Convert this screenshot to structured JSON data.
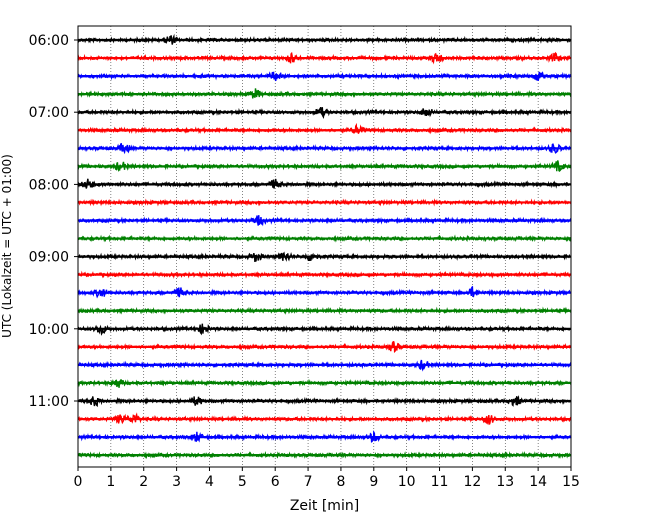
{
  "chart_data": {
    "type": "line",
    "title": "",
    "xlabel": "Zeit  [min]",
    "ylabel": "UTC (Lokalzeit = UTC + 01:00)",
    "xlim": [
      0,
      15
    ],
    "x_ticks": [
      "0",
      "1",
      "2",
      "3",
      "4",
      "5",
      "6",
      "7",
      "8",
      "9",
      "10",
      "11",
      "12",
      "13",
      "14",
      "15"
    ],
    "y_tick_labels": [
      "06:00",
      "07:00",
      "08:00",
      "09:00",
      "10:00",
      "11:00"
    ],
    "grid": "vertical dotted lines at each minute",
    "trace_interval_minutes": 15,
    "trace_colors_cycle": [
      "#000000",
      "#ff0000",
      "#0000ff",
      "#008000"
    ],
    "traces": [
      {
        "start": "06:00",
        "color": "#000000",
        "events_min": [
          2.8
        ]
      },
      {
        "start": "06:15",
        "color": "#ff0000",
        "events_min": [
          6.5,
          10.9,
          14.5
        ]
      },
      {
        "start": "06:30",
        "color": "#0000ff",
        "events_min": [
          6.0,
          14.0
        ]
      },
      {
        "start": "06:45",
        "color": "#008000",
        "events_min": [
          5.4
        ]
      },
      {
        "start": "07:00",
        "color": "#000000",
        "events_min": [
          7.4,
          10.6
        ]
      },
      {
        "start": "07:15",
        "color": "#ff0000",
        "events_min": [
          8.5
        ]
      },
      {
        "start": "07:30",
        "color": "#0000ff",
        "events_min": [
          1.4,
          14.5
        ]
      },
      {
        "start": "07:45",
        "color": "#008000",
        "events_min": [
          1.3,
          14.6
        ]
      },
      {
        "start": "08:00",
        "color": "#000000",
        "events_min": [
          0.3,
          6.0
        ]
      },
      {
        "start": "08:15",
        "color": "#ff0000",
        "events_min": []
      },
      {
        "start": "08:30",
        "color": "#0000ff",
        "events_min": [
          5.5
        ]
      },
      {
        "start": "08:45",
        "color": "#008000",
        "events_min": []
      },
      {
        "start": "09:00",
        "color": "#000000",
        "events_min": [
          5.4,
          6.3,
          7.1
        ]
      },
      {
        "start": "09:15",
        "color": "#ff0000",
        "events_min": []
      },
      {
        "start": "09:30",
        "color": "#0000ff",
        "events_min": [
          0.7,
          3.1,
          12.0
        ]
      },
      {
        "start": "09:45",
        "color": "#008000",
        "events_min": []
      },
      {
        "start": "10:00",
        "color": "#000000",
        "events_min": [
          0.7,
          3.8
        ]
      },
      {
        "start": "10:15",
        "color": "#ff0000",
        "events_min": [
          9.6
        ]
      },
      {
        "start": "10:30",
        "color": "#0000ff",
        "events_min": [
          10.5
        ]
      },
      {
        "start": "10:45",
        "color": "#008000",
        "events_min": [
          1.2
        ]
      },
      {
        "start": "11:00",
        "color": "#000000",
        "events_min": [
          0.5,
          3.6,
          13.3
        ]
      },
      {
        "start": "11:15",
        "color": "#ff0000",
        "events_min": [
          1.3,
          1.7,
          12.5
        ]
      },
      {
        "start": "11:30",
        "color": "#0000ff",
        "events_min": [
          3.6,
          9.0
        ]
      },
      {
        "start": "11:45",
        "color": "#008000",
        "events_min": []
      }
    ]
  }
}
